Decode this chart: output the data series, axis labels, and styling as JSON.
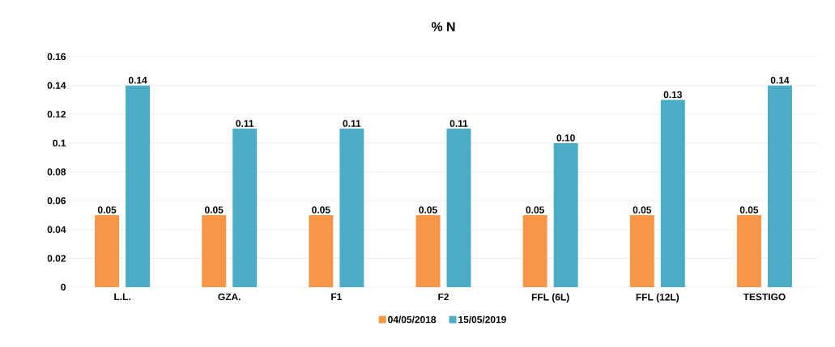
{
  "chart_data": {
    "type": "bar",
    "title": "% N",
    "categories": [
      "L.L.",
      "GZA.",
      "F1",
      "F2",
      "FFL (6L)",
      "FFL (12L)",
      "TESTIGO"
    ],
    "series": [
      {
        "name": "04/05/2018",
        "color": "#f79646",
        "values": [
          0.05,
          0.05,
          0.05,
          0.05,
          0.05,
          0.05,
          0.05
        ],
        "value_labels": [
          "0.05",
          "0.05",
          "0.05",
          "0.05",
          "0.05",
          "0.05",
          "0.05"
        ]
      },
      {
        "name": "15/05/2019",
        "color": "#4bacc6",
        "values": [
          0.14,
          0.11,
          0.11,
          0.11,
          0.1,
          0.13,
          0.14
        ],
        "value_labels": [
          "0.14",
          "0.11",
          "0.11",
          "0.11",
          "0.10",
          "0.13",
          "0.14"
        ]
      }
    ],
    "ylim": [
      0,
      0.16
    ],
    "yticks": [
      0,
      0.02,
      0.04,
      0.06,
      0.08,
      0.1,
      0.12,
      0.14,
      0.16
    ],
    "grid": "y",
    "legend": "bottom"
  }
}
